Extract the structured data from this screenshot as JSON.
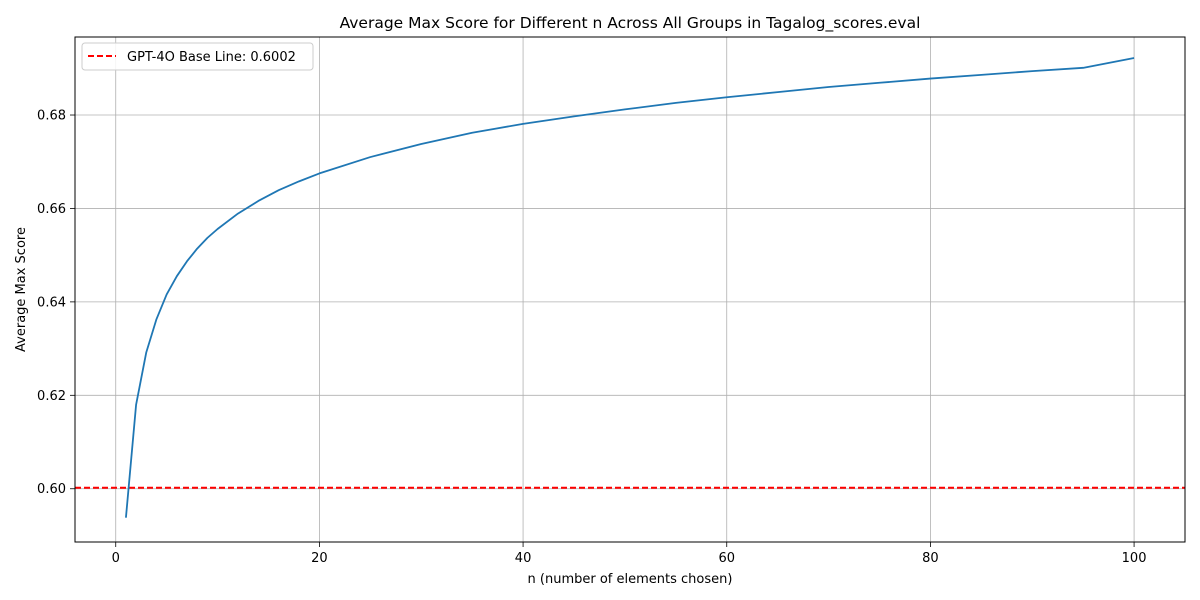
{
  "chart_data": {
    "type": "line",
    "title": "Average Max Score for Different n Across All Groups in Tagalog_scores.eval",
    "xlabel": "n (number of elements chosen)",
    "ylabel": "Average Max Score",
    "xlim": [
      -4,
      105
    ],
    "ylim": [
      0.5886,
      0.6967
    ],
    "xticks": [
      0,
      20,
      40,
      60,
      80,
      100
    ],
    "yticks": [
      0.6,
      0.62,
      0.64,
      0.66,
      0.68
    ],
    "xtick_labels": [
      "0",
      "20",
      "40",
      "60",
      "80",
      "100"
    ],
    "ytick_labels": [
      "0.60",
      "0.62",
      "0.64",
      "0.66",
      "0.68"
    ],
    "grid": true,
    "legend_position": "top-left",
    "series": [
      {
        "name": "",
        "color": "#1f77b4",
        "x": [
          1,
          2,
          3,
          4,
          5,
          6,
          7,
          8,
          9,
          10,
          12,
          14,
          16,
          18,
          20,
          25,
          30,
          35,
          40,
          45,
          50,
          55,
          60,
          65,
          70,
          75,
          80,
          85,
          90,
          95,
          100
        ],
        "y": [
          0.5938,
          0.618,
          0.6292,
          0.6363,
          0.6416,
          0.6455,
          0.6487,
          0.6514,
          0.6537,
          0.6556,
          0.6589,
          0.6616,
          0.6639,
          0.6658,
          0.6675,
          0.671,
          0.6738,
          0.6762,
          0.6781,
          0.6797,
          0.6812,
          0.6826,
          0.6838,
          0.6849,
          0.686,
          0.6869,
          0.6878,
          0.6886,
          0.6894,
          0.6901,
          0.6922
        ]
      }
    ],
    "baseline": {
      "name": "GPT-4O Base Line: 0.6002",
      "value": 0.6002,
      "color": "#ff0000",
      "style": "dashed"
    }
  }
}
